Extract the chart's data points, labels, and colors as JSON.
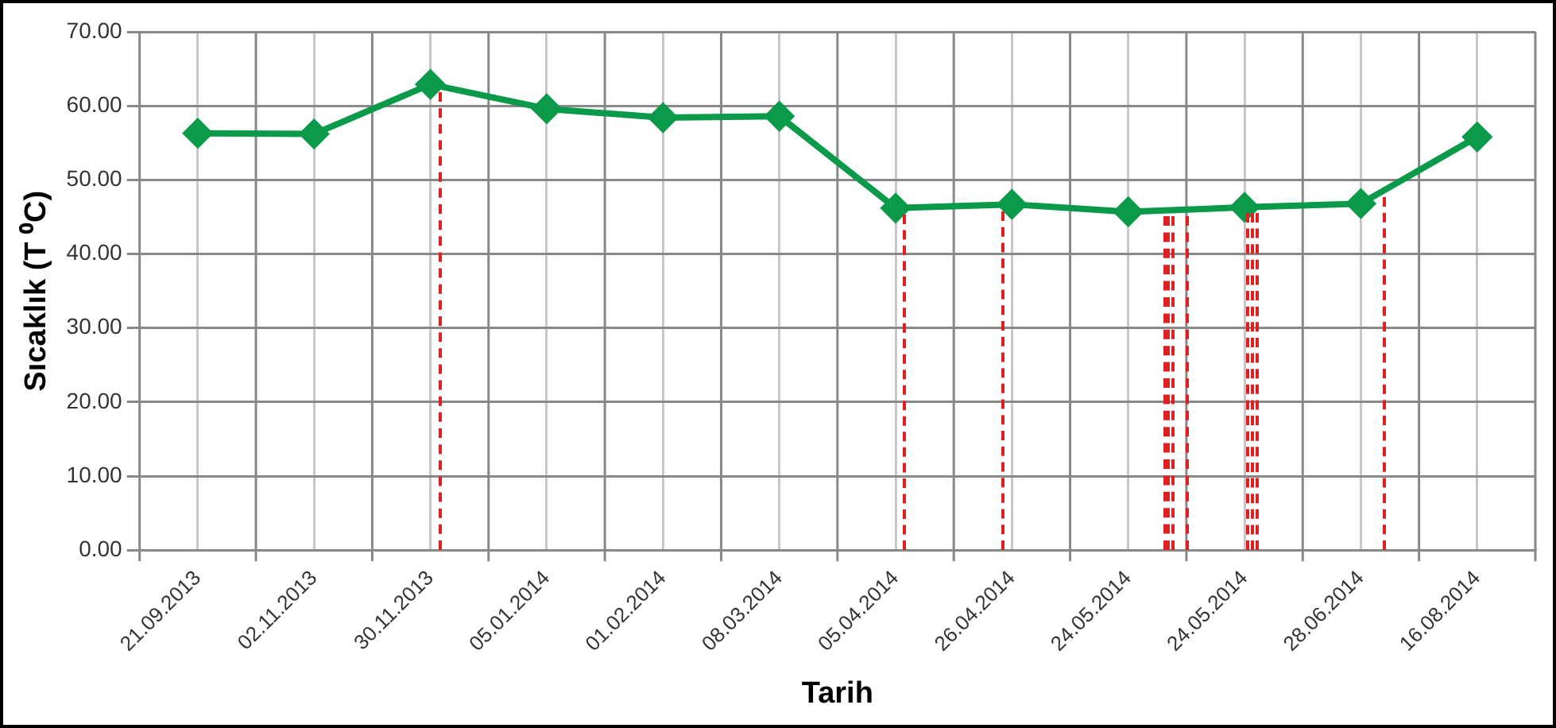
{
  "chart_data": {
    "type": "line",
    "xlabel": "Tarih",
    "ylabel": "Sıcaklık (T ⁰C)",
    "categories": [
      "21.09.2013",
      "02.11.2013",
      "30.11.2013",
      "05.01.2014",
      "01.02.2014",
      "08.03.2014",
      "05.04.2014",
      "26.04.2014",
      "24.05.2014",
      "24.05.2014",
      "28.06.2014",
      "16.08.2014"
    ],
    "series": [
      {
        "color": "#0a9a4a",
        "values": [
          56.3,
          56.2,
          62.9,
          59.6,
          58.4,
          58.6,
          46.2,
          46.7,
          45.7,
          46.3,
          46.8,
          55.8
        ]
      }
    ],
    "ylim": [
      0,
      70
    ],
    "yticks": [
      {
        "value": 0,
        "label": "0.00"
      },
      {
        "value": 10,
        "label": "10.00"
      },
      {
        "value": 20,
        "label": "20.00"
      },
      {
        "value": 30,
        "label": "30.00"
      },
      {
        "value": 40,
        "label": "40.00"
      },
      {
        "value": 50,
        "label": "50.00"
      },
      {
        "value": 60,
        "label": "60.00"
      },
      {
        "value": 70,
        "label": "70.00"
      }
    ],
    "grid": true,
    "legend": false,
    "marker": "diamond",
    "line_style": "solid"
  }
}
